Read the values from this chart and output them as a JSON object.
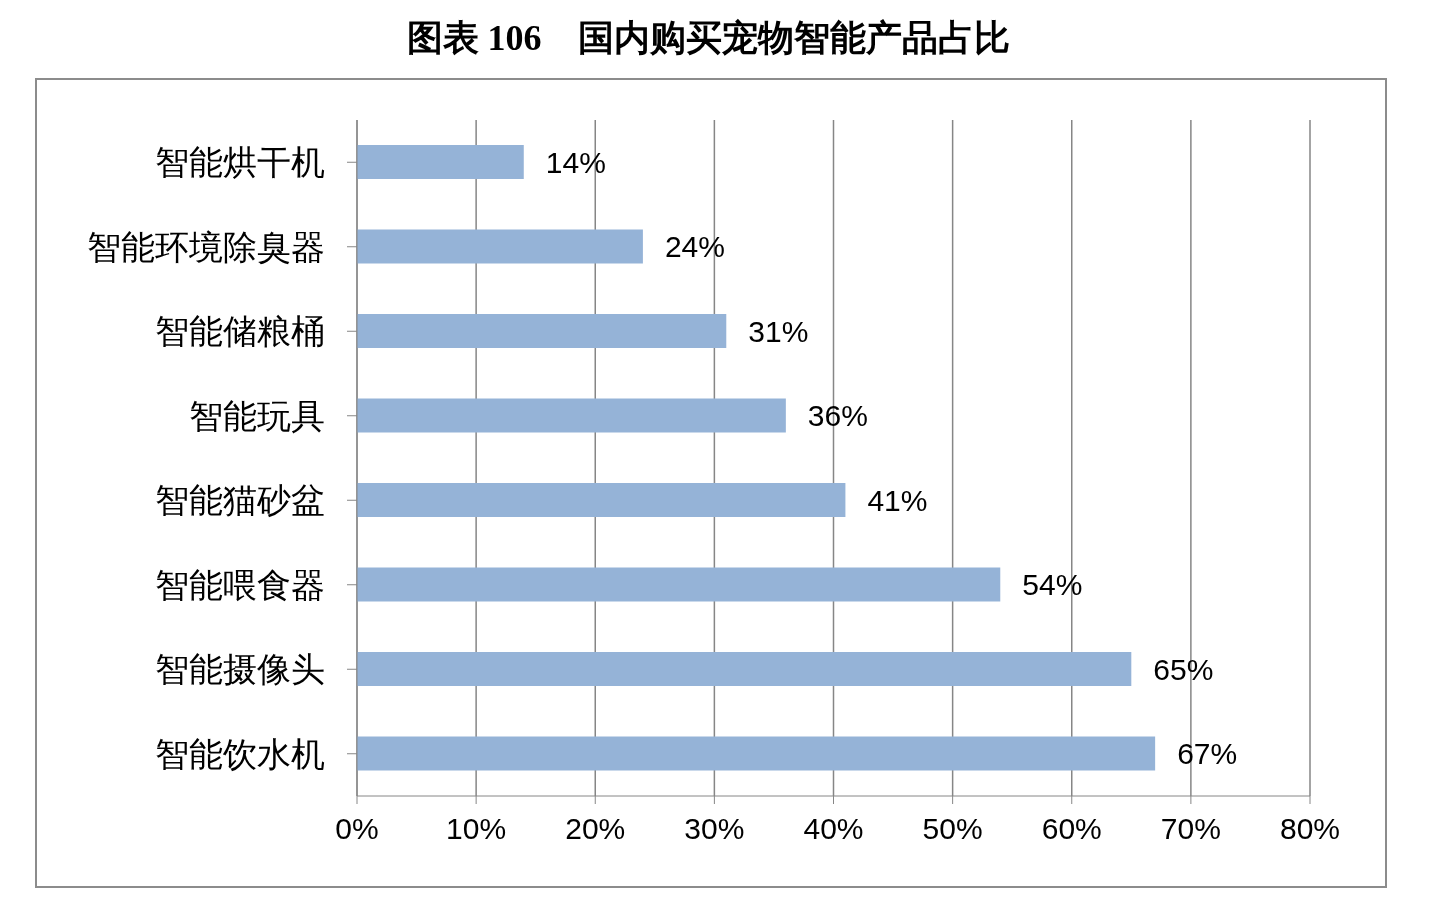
{
  "chart_data": {
    "type": "bar",
    "orientation": "horizontal",
    "title": "图表 106　国内购买宠物智能产品占比",
    "categories": [
      "智能烘干机",
      "智能环境除臭器",
      "智能储粮桶",
      "智能玩具",
      "智能猫砂盆",
      "智能喂食器",
      "智能摄像头",
      "智能饮水机"
    ],
    "values": [
      14,
      24,
      31,
      36,
      41,
      54,
      65,
      67
    ],
    "value_labels": [
      "14%",
      "24%",
      "31%",
      "36%",
      "41%",
      "54%",
      "65%",
      "67%"
    ],
    "color": "#95b3d7",
    "xlim": [
      0,
      80
    ],
    "xticks": [
      {
        "value": 0,
        "label": "0%"
      },
      {
        "value": 10,
        "label": "10%"
      },
      {
        "value": 20,
        "label": "20%"
      },
      {
        "value": 30,
        "label": "30%"
      },
      {
        "value": 40,
        "label": "40%"
      },
      {
        "value": 50,
        "label": "50%"
      },
      {
        "value": 60,
        "label": "60%"
      },
      {
        "value": 70,
        "label": "70%"
      },
      {
        "value": 80,
        "label": "80%"
      }
    ],
    "grid": "x",
    "legend": false
  }
}
